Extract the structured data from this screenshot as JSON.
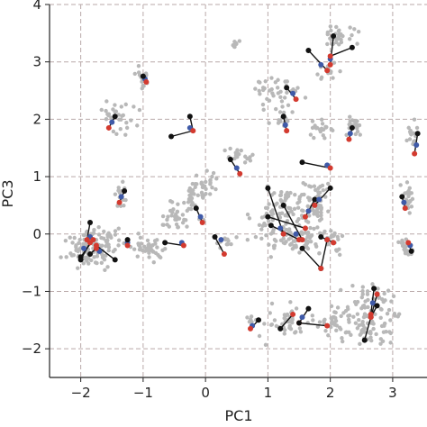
{
  "chart_data": {
    "type": "scatter",
    "title": "",
    "xlabel": "PC1",
    "ylabel": "PC3",
    "xlim": [
      -2.5,
      3.55
    ],
    "ylim": [
      -2.5,
      4.0
    ],
    "xticks": [
      -2,
      -1,
      0,
      1,
      2,
      3
    ],
    "yticks": [
      -2,
      -1,
      0,
      1,
      2,
      3,
      4
    ],
    "xtick_labels": [
      "−2",
      "−1",
      "0",
      "1",
      "2",
      "3"
    ],
    "ytick_labels": [
      "−2",
      "−1",
      "0",
      "1",
      "2",
      "3",
      "4"
    ],
    "grid": true,
    "legend": "none",
    "colors": {
      "background_points": "#b8b8b8",
      "black_marker": "#111111",
      "red_marker": "#d33a2f",
      "blue_marker": "#3f5aa8",
      "grid": "#b9a9a9",
      "axis": "#222222"
    },
    "clusters": [
      {
        "center": [
          -1.0,
          2.7
        ],
        "spread": [
          0.05,
          0.1
        ],
        "count": 22
      },
      {
        "center": [
          -1.4,
          2.05
        ],
        "spread": [
          0.15,
          0.15
        ],
        "count": 30
      },
      {
        "center": [
          -1.35,
          0.65
        ],
        "spread": [
          0.05,
          0.12
        ],
        "count": 14
      },
      {
        "center": [
          -1.85,
          -0.25
        ],
        "spread": [
          0.18,
          0.15
        ],
        "count": 95
      },
      {
        "center": [
          -1.5,
          -0.15
        ],
        "spread": [
          0.1,
          0.1
        ],
        "count": 20
      },
      {
        "center": [
          -0.9,
          -0.25
        ],
        "spread": [
          0.12,
          0.1
        ],
        "count": 40
      },
      {
        "center": [
          -0.5,
          0.3
        ],
        "spread": [
          0.12,
          0.12
        ],
        "count": 30
      },
      {
        "center": [
          -0.2,
          0.55
        ],
        "spread": [
          0.08,
          0.15
        ],
        "count": 25
      },
      {
        "center": [
          -0.05,
          0.85
        ],
        "spread": [
          0.12,
          0.12
        ],
        "count": 28
      },
      {
        "center": [
          0.3,
          -0.15
        ],
        "spread": [
          0.08,
          0.06
        ],
        "count": 12
      },
      {
        "center": [
          0.5,
          1.35
        ],
        "spread": [
          0.14,
          0.07
        ],
        "count": 20
      },
      {
        "center": [
          0.45,
          3.3
        ],
        "spread": [
          0.06,
          0.04
        ],
        "count": 8
      },
      {
        "center": [
          1.15,
          2.45
        ],
        "spread": [
          0.18,
          0.15
        ],
        "count": 35
      },
      {
        "center": [
          1.25,
          2.05
        ],
        "spread": [
          0.1,
          0.1
        ],
        "count": 18
      },
      {
        "center": [
          1.3,
          0.3
        ],
        "spread": [
          0.25,
          0.3
        ],
        "count": 130
      },
      {
        "center": [
          1.55,
          -0.1
        ],
        "spread": [
          0.15,
          0.1
        ],
        "count": 40
      },
      {
        "center": [
          1.8,
          0.55
        ],
        "spread": [
          0.1,
          0.2
        ],
        "count": 40
      },
      {
        "center": [
          1.85,
          1.8
        ],
        "spread": [
          0.1,
          0.1
        ],
        "count": 20
      },
      {
        "center": [
          2.15,
          3.45
        ],
        "spread": [
          0.15,
          0.1
        ],
        "count": 30
      },
      {
        "center": [
          1.95,
          2.85
        ],
        "spread": [
          0.08,
          0.08
        ],
        "count": 15
      },
      {
        "center": [
          2.4,
          1.9
        ],
        "spread": [
          0.08,
          0.1
        ],
        "count": 22
      },
      {
        "center": [
          2.0,
          -0.1
        ],
        "spread": [
          0.1,
          0.12
        ],
        "count": 25
      },
      {
        "center": [
          2.0,
          -1.55
        ],
        "spread": [
          0.15,
          0.1
        ],
        "count": 25
      },
      {
        "center": [
          1.35,
          -1.55
        ],
        "spread": [
          0.22,
          0.15
        ],
        "count": 45
      },
      {
        "center": [
          2.65,
          -1.4
        ],
        "spread": [
          0.22,
          0.25
        ],
        "count": 110
      },
      {
        "center": [
          3.25,
          0.6
        ],
        "spread": [
          0.05,
          0.15
        ],
        "count": 22
      },
      {
        "center": [
          3.3,
          1.7
        ],
        "spread": [
          0.05,
          0.12
        ],
        "count": 18
      },
      {
        "center": [
          3.2,
          -0.25
        ],
        "spread": [
          0.06,
          0.08
        ],
        "count": 18
      },
      {
        "center": [
          0.7,
          -1.5
        ],
        "spread": [
          0.05,
          0.05
        ],
        "count": 8
      }
    ],
    "segments": [
      {
        "black": [
          -1.0,
          2.75
        ],
        "red": [
          -0.95,
          2.65
        ],
        "blue": [
          -0.97,
          2.7
        ]
      },
      {
        "black": [
          -1.45,
          2.05
        ],
        "red": [
          -1.55,
          1.85
        ],
        "blue": [
          -1.5,
          1.95
        ]
      },
      {
        "black": [
          -0.55,
          1.7
        ],
        "red": [
          -0.2,
          1.8
        ],
        "blue": [
          -0.25,
          1.85
        ],
        "extra_black": [
          -0.25,
          2.05
        ]
      },
      {
        "black": [
          -1.3,
          0.75
        ],
        "red": [
          -1.38,
          0.55
        ],
        "blue": [
          -1.35,
          0.65
        ]
      },
      {
        "black": [
          -1.85,
          0.2
        ],
        "red": [
          -1.9,
          -0.1
        ],
        "blue": [
          -1.85,
          -0.05
        ]
      },
      {
        "black": [
          -2.0,
          -0.4
        ],
        "red": [
          -1.8,
          -0.1
        ],
        "blue": [
          -1.95,
          -0.25
        ]
      },
      {
        "black": [
          -1.45,
          -0.45
        ],
        "red": [
          -1.75,
          -0.2
        ],
        "blue": [
          -1.7,
          -0.3
        ]
      },
      {
        "black": [
          -1.85,
          -0.35
        ],
        "red": [
          -1.75,
          -0.25
        ]
      },
      {
        "black": [
          -2.0,
          -0.45
        ],
        "red": [
          -1.85,
          -0.15
        ]
      },
      {
        "black": [
          -1.25,
          -0.1
        ],
        "red": [
          -1.25,
          -0.2
        ],
        "blue": [
          -1.25,
          -0.15
        ]
      },
      {
        "black": [
          -0.65,
          -0.15
        ],
        "red": [
          -0.35,
          -0.2
        ],
        "blue": [
          -0.38,
          -0.15
        ]
      },
      {
        "black": [
          -0.15,
          0.45
        ],
        "red": [
          -0.05,
          0.2
        ],
        "blue": [
          -0.08,
          0.3
        ]
      },
      {
        "black": [
          0.15,
          -0.05
        ],
        "red": [
          0.3,
          -0.35
        ],
        "blue": [
          0.25,
          -0.1
        ]
      },
      {
        "black": [
          0.4,
          1.3
        ],
        "red": [
          0.55,
          1.05
        ],
        "blue": [
          0.5,
          1.15
        ]
      },
      {
        "black": [
          0.85,
          -1.5
        ],
        "red": [
          0.72,
          -1.65
        ],
        "blue": [
          0.75,
          -1.6
        ]
      },
      {
        "black": [
          1.3,
          2.55
        ],
        "red": [
          1.45,
          2.35
        ],
        "blue": [
          1.4,
          2.45
        ]
      },
      {
        "black": [
          1.25,
          2.05
        ],
        "red": [
          1.3,
          1.8
        ],
        "blue": [
          1.28,
          1.9
        ]
      },
      {
        "black": [
          1.55,
          1.25
        ],
        "red": [
          2.0,
          1.15
        ],
        "blue": [
          1.95,
          1.2
        ]
      },
      {
        "black": [
          1.0,
          0.8
        ],
        "red": [
          1.25,
          0.0
        ],
        "blue": [
          1.2,
          0.1
        ]
      },
      {
        "black": [
          1.25,
          0.5
        ],
        "red": [
          1.55,
          -0.1
        ],
        "blue": [
          1.45,
          0.0
        ]
      },
      {
        "black": [
          1.0,
          0.3
        ],
        "red": [
          1.6,
          0.1
        ]
      },
      {
        "black": [
          1.05,
          0.15
        ],
        "red": [
          1.5,
          -0.1
        ]
      },
      {
        "black": [
          1.75,
          0.6
        ],
        "red": [
          1.6,
          0.3
        ],
        "blue": [
          1.65,
          0.4
        ]
      },
      {
        "black": [
          2.0,
          0.8
        ],
        "red": [
          1.75,
          0.5
        ],
        "blue": [
          1.82,
          0.6
        ]
      },
      {
        "black": [
          1.85,
          -0.05
        ],
        "red": [
          2.05,
          -0.15
        ],
        "blue": [
          1.95,
          -0.1
        ]
      },
      {
        "black": [
          1.85,
          -0.6
        ],
        "red": [
          1.95,
          -0.1
        ]
      },
      {
        "black": [
          1.55,
          -0.25
        ],
        "red": [
          1.85,
          -0.6
        ]
      },
      {
        "black": [
          1.65,
          3.2
        ],
        "red": [
          1.95,
          2.85
        ],
        "blue": [
          1.85,
          2.95
        ]
      },
      {
        "black": [
          2.05,
          3.45
        ],
        "red": [
          2.0,
          2.95
        ],
        "blue": [
          2.0,
          3.05
        ]
      },
      {
        "black": [
          2.35,
          3.25
        ],
        "red": [
          2.0,
          3.1
        ]
      },
      {
        "black": [
          2.35,
          1.85
        ],
        "red": [
          2.3,
          1.65
        ],
        "blue": [
          2.32,
          1.75
        ]
      },
      {
        "black": [
          1.65,
          -1.3
        ],
        "red": [
          1.5,
          -1.55
        ],
        "blue": [
          1.55,
          -1.45
        ]
      },
      {
        "black": [
          1.5,
          -1.55
        ],
        "red": [
          1.95,
          -1.6
        ]
      },
      {
        "black": [
          1.2,
          -1.65
        ],
        "red": [
          1.4,
          -1.4
        ]
      },
      {
        "black": [
          2.7,
          -0.95
        ],
        "red": [
          2.65,
          -1.4
        ],
        "blue": [
          2.68,
          -1.2
        ]
      },
      {
        "black": [
          2.55,
          -1.85
        ],
        "red": [
          2.75,
          -1.05
        ]
      },
      {
        "black": [
          2.75,
          -1.25
        ],
        "red": [
          2.65,
          -1.45
        ]
      },
      {
        "black": [
          3.15,
          0.65
        ],
        "red": [
          3.2,
          0.45
        ],
        "blue": [
          3.18,
          0.55
        ]
      },
      {
        "black": [
          3.4,
          1.75
        ],
        "red": [
          3.35,
          1.4
        ],
        "blue": [
          3.38,
          1.55
        ]
      },
      {
        "black": [
          3.3,
          -0.3
        ],
        "red": [
          3.25,
          -0.15
        ],
        "blue": [
          3.28,
          -0.2
        ]
      }
    ]
  }
}
